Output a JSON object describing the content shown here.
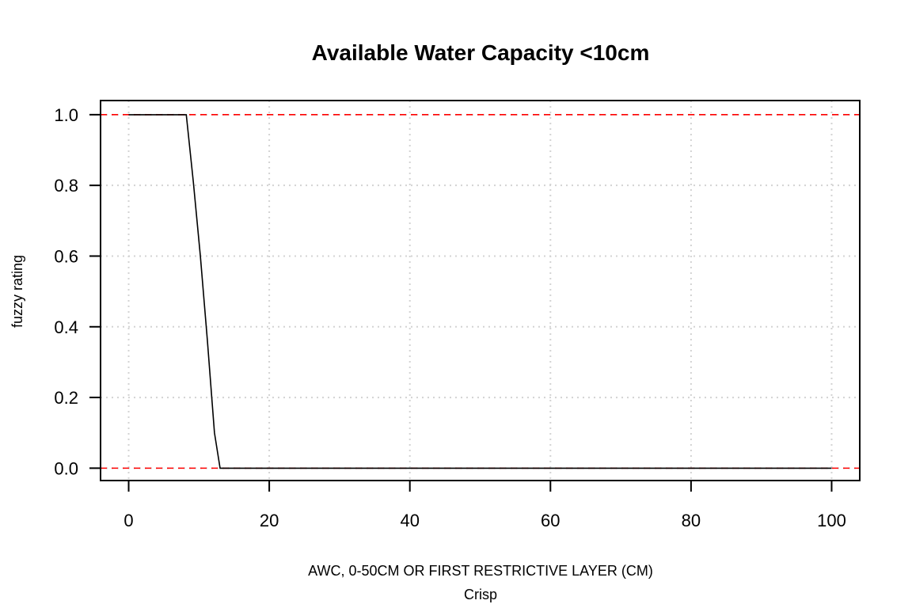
{
  "chart_data": {
    "type": "line",
    "title": "Available Water Capacity <10cm",
    "xlabel": "AWC, 0-50CM OR FIRST RESTRICTIVE LAYER (CM)",
    "xsublabel": "Crisp",
    "ylabel": "fuzzy rating",
    "xlim": [
      -4,
      104
    ],
    "ylim": [
      -0.035,
      1.04
    ],
    "xticks": [
      0,
      20,
      40,
      60,
      80,
      100
    ],
    "yticks": [
      0.0,
      0.2,
      0.4,
      0.6,
      0.8,
      1.0
    ],
    "xtick_labels": [
      "0",
      "20",
      "40",
      "60",
      "80",
      "100"
    ],
    "ytick_labels": [
      "0.0",
      "0.2",
      "0.4",
      "0.6",
      "0.8",
      "1.0"
    ],
    "grid": true,
    "reference_lines": [
      {
        "y": 1.0,
        "color": "#ff0000",
        "style": "dashed"
      },
      {
        "y": 0.0,
        "color": "#ff0000",
        "style": "dashed"
      }
    ],
    "series": [
      {
        "color": "#000000",
        "x": [
          0,
          8.2,
          9.2,
          10.2,
          11.2,
          12.2,
          13.0,
          100
        ],
        "y": [
          1.0,
          1.0,
          0.81,
          0.6,
          0.36,
          0.1,
          0.0,
          0.0
        ]
      }
    ]
  }
}
